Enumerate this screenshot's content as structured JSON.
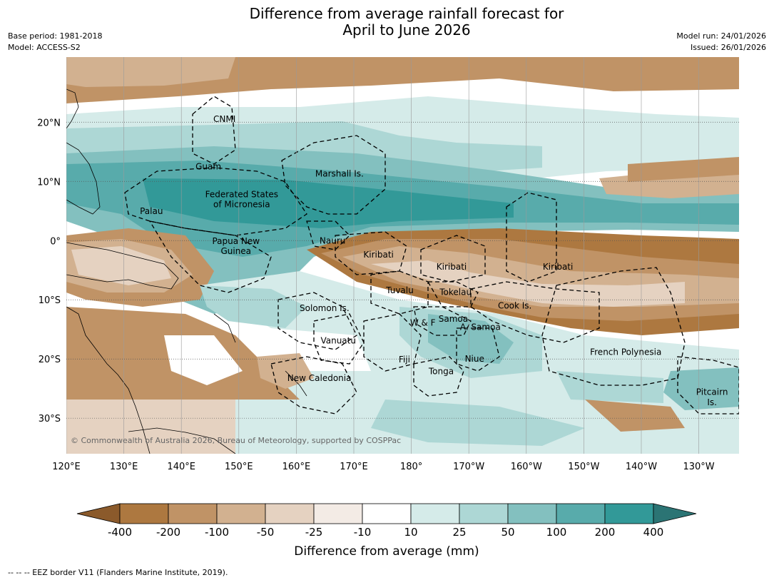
{
  "title_line1": "Difference from average rainfall forecast for",
  "title_line2": "April to June 2026",
  "base_period": "Base period: 1981-2018",
  "model": "Model: ACCESS-S2",
  "model_run": "Model run: 24/01/2026",
  "issued": "Issued: 26/01/2026",
  "copyright": "© Commonwealth of Australia 2026, Bureau of Meteorology, supported by COSPPac",
  "footnote": "--  --  -- EEZ border V11 (Flanders Marine Institute, 2019).",
  "lon_labels": [
    "120°E",
    "130°E",
    "140°E",
    "150°E",
    "160°E",
    "170°E",
    "180°",
    "170°W",
    "160°W",
    "150°W",
    "140°W",
    "130°W"
  ],
  "lon_values": [
    120,
    130,
    140,
    150,
    160,
    170,
    180,
    190,
    200,
    210,
    220,
    230
  ],
  "lat_labels": [
    "20°N",
    "10°N",
    "0°",
    "10°S",
    "20°S",
    "30°S"
  ],
  "lat_values": [
    20,
    10,
    0,
    -10,
    -20,
    -30
  ],
  "regions": [
    {
      "name": "CNMI",
      "lon": 147.5,
      "lat": 20.5
    },
    {
      "name": "Guam",
      "lon": 144.7,
      "lat": 12.5
    },
    {
      "name": "Marshall Is.",
      "lon": 167.5,
      "lat": 11.3
    },
    {
      "name": "Federated States",
      "lon": 150.5,
      "lat": 7.8
    },
    {
      "name": "of Micronesia",
      "lon": 150.5,
      "lat": 6.1
    },
    {
      "name": "Palau",
      "lon": 134.8,
      "lat": 5.0
    },
    {
      "name": "Nauru",
      "lon": 166.3,
      "lat": 0.0
    },
    {
      "name": "Papua New",
      "lon": 149.5,
      "lat": -0.1
    },
    {
      "name": "Guinea",
      "lon": 149.5,
      "lat": -1.8
    },
    {
      "name": "Kiribati",
      "lon": 174.3,
      "lat": -2.4
    },
    {
      "name": "Kiribati",
      "lon": 187.0,
      "lat": -4.4
    },
    {
      "name": "Kiribati",
      "lon": 205.5,
      "lat": -4.4
    },
    {
      "name": "Tuvalu",
      "lon": 178.0,
      "lat": -8.4
    },
    {
      "name": "Tokelau",
      "lon": 187.7,
      "lat": -8.7
    },
    {
      "name": "Cook Is.",
      "lon": 198.0,
      "lat": -11.0
    },
    {
      "name": "Solomon Is.",
      "lon": 164.9,
      "lat": -11.4
    },
    {
      "name": "Samoa",
      "lon": 187.3,
      "lat": -13.2
    },
    {
      "name": "W & F",
      "lon": 182.0,
      "lat": -13.9
    },
    {
      "name": "A. Samoa",
      "lon": 192.0,
      "lat": -14.6
    },
    {
      "name": "Vanuatu",
      "lon": 167.3,
      "lat": -16.9
    },
    {
      "name": "French Polynesia",
      "lon": 217.3,
      "lat": -18.8
    },
    {
      "name": "Fiji",
      "lon": 178.8,
      "lat": -20.1
    },
    {
      "name": "Niue",
      "lon": 191.0,
      "lat": -20.0
    },
    {
      "name": "Tonga",
      "lon": 185.2,
      "lat": -22.1
    },
    {
      "name": "New Caledonia",
      "lon": 164.0,
      "lat": -23.2
    },
    {
      "name": "Pitcairn",
      "lon": 232.3,
      "lat": -25.6
    },
    {
      "name": "Is.",
      "lon": 232.3,
      "lat": -27.3
    }
  ],
  "colorbar": {
    "title": "Difference from average (mm)",
    "ticks": [
      "-400",
      "-200",
      "-100",
      "-50",
      "-25",
      "-10",
      "10",
      "25",
      "50",
      "100",
      "200",
      "400"
    ],
    "colors": [
      "#8b5a2b",
      "#ad7840",
      "#c09366",
      "#d2b190",
      "#e5d2c1",
      "#f3ebe5",
      "#ffffff",
      "#d5ebe9",
      "#add7d5",
      "#83c0bf",
      "#58abab",
      "#329998",
      "#2b7474"
    ]
  },
  "precip_field": [
    {
      "lat": 22,
      "lon": 137,
      "level": 2
    },
    {
      "lat": 24,
      "lon": 124,
      "level": 2
    },
    {
      "lat": 16,
      "lon": 140,
      "level": 7
    },
    {
      "lat": 16,
      "lon": 165,
      "level": 8
    },
    {
      "lat": 18,
      "lon": 190,
      "level": 7
    },
    {
      "lat": 15,
      "lon": 215,
      "level": 7
    },
    {
      "lat": 9,
      "lon": 215,
      "level": 2
    },
    {
      "lat": 10,
      "lon": 225,
      "level": 1
    },
    {
      "lat": 6,
      "lon": 140,
      "level": 10
    },
    {
      "lat": 6,
      "lon": 165,
      "level": 11
    },
    {
      "lat": 4,
      "lon": 185,
      "level": 11
    },
    {
      "lat": 4,
      "lon": 205,
      "level": 10
    },
    {
      "lat": 3,
      "lon": 225,
      "level": 9
    },
    {
      "lat": -5,
      "lon": 125,
      "level": 1
    },
    {
      "lat": -6,
      "lon": 138,
      "level": 2
    },
    {
      "lat": -5,
      "lon": 180,
      "level": 1
    },
    {
      "lat": -6,
      "lon": 200,
      "level": 2
    },
    {
      "lat": -11,
      "lon": 215,
      "level": 1
    },
    {
      "lat": -5,
      "lon": 228,
      "level": 2
    },
    {
      "lat": -10,
      "lon": 158,
      "level": 9
    },
    {
      "lat": -16,
      "lon": 185,
      "level": 10
    },
    {
      "lat": -22,
      "lon": 195,
      "level": 8
    },
    {
      "lat": -28,
      "lon": 190,
      "level": 8
    },
    {
      "lat": -28,
      "lon": 232,
      "level": 9
    },
    {
      "lat": -16,
      "lon": 225,
      "level": 8
    },
    {
      "lat": -20,
      "lon": 165,
      "level": 4
    },
    {
      "lat": -26,
      "lon": 160,
      "level": 5
    }
  ]
}
